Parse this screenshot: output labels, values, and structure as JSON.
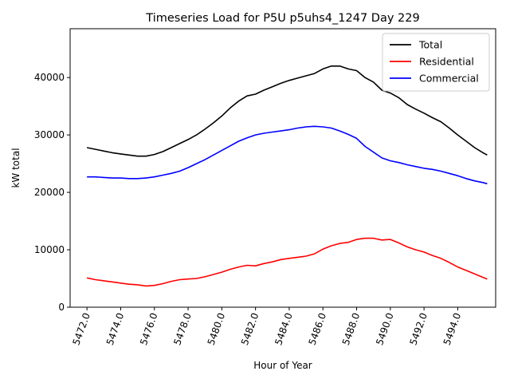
{
  "chart_data": {
    "type": "line",
    "title": "Timeseries Load for P5U p5uhs4_1247  Day 229",
    "xlabel": "Hour of Year",
    "ylabel": "kW total",
    "xlim": [
      5471.0,
      5496.25
    ],
    "ylim": [
      0,
      48500
    ],
    "x_ticks": [
      5472.0,
      5474.0,
      5476.0,
      5478.0,
      5480.0,
      5482.0,
      5484.0,
      5486.0,
      5488.0,
      5490.0,
      5492.0,
      5494.0
    ],
    "x_tick_labels": [
      "5472.0",
      "5474.0",
      "5476.0",
      "5478.0",
      "5480.0",
      "5482.0",
      "5484.0",
      "5486.0",
      "5488.0",
      "5490.0",
      "5492.0",
      "5494.0"
    ],
    "y_ticks": [
      0,
      10000,
      20000,
      30000,
      40000
    ],
    "y_tick_labels": [
      "0",
      "10000",
      "20000",
      "30000",
      "40000"
    ],
    "legend_position": "top-right",
    "grid": false,
    "x": [
      5472.0,
      5472.5,
      5473.0,
      5473.5,
      5474.0,
      5474.5,
      5475.0,
      5475.5,
      5476.0,
      5476.5,
      5477.0,
      5477.5,
      5478.0,
      5478.5,
      5479.0,
      5479.5,
      5480.0,
      5480.5,
      5481.0,
      5481.5,
      5482.0,
      5482.5,
      5483.0,
      5483.5,
      5484.0,
      5484.5,
      5485.0,
      5485.5,
      5486.0,
      5486.5,
      5487.0,
      5487.5,
      5488.0,
      5488.5,
      5489.0,
      5489.5,
      5490.0,
      5490.5,
      5491.0,
      5491.5,
      5492.0,
      5492.5,
      5493.0,
      5493.5,
      5494.0,
      5494.5,
      5495.0,
      5495.5,
      5495.75
    ],
    "series": [
      {
        "name": "Total",
        "color": "#000000",
        "values": [
          27800,
          27500,
          27200,
          26900,
          26700,
          26500,
          26300,
          26300,
          26600,
          27100,
          27800,
          28500,
          29200,
          30000,
          31000,
          32100,
          33300,
          34700,
          35900,
          36800,
          37100,
          37800,
          38400,
          39000,
          39500,
          39900,
          40300,
          40700,
          41500,
          42000,
          42000,
          41500,
          41200,
          40000,
          39200,
          37800,
          37300,
          36500,
          35300,
          34500,
          33800,
          33000,
          32300,
          31200,
          30000,
          28900,
          27800,
          26900,
          26500
        ]
      },
      {
        "name": "Residential",
        "color": "#ff0000",
        "values": [
          5100,
          4800,
          4600,
          4400,
          4200,
          4000,
          3900,
          3700,
          3800,
          4100,
          4500,
          4800,
          4900,
          5000,
          5300,
          5700,
          6100,
          6600,
          7000,
          7300,
          7200,
          7600,
          7900,
          8300,
          8500,
          8700,
          8900,
          9300,
          10100,
          10700,
          11100,
          11300,
          11800,
          12000,
          12000,
          11700,
          11800,
          11200,
          10500,
          10000,
          9600,
          9000,
          8500,
          7800,
          7000,
          6400,
          5800,
          5200,
          4900
        ]
      },
      {
        "name": "Commercial",
        "color": "#0000ff",
        "values": [
          22700,
          22700,
          22600,
          22500,
          22500,
          22400,
          22400,
          22500,
          22700,
          23000,
          23300,
          23700,
          24300,
          25000,
          25700,
          26500,
          27300,
          28100,
          28900,
          29500,
          30000,
          30300,
          30500,
          30700,
          30900,
          31200,
          31400,
          31500,
          31400,
          31200,
          30700,
          30100,
          29400,
          28000,
          27000,
          26000,
          25500,
          25200,
          24800,
          24500,
          24200,
          24000,
          23700,
          23300,
          22900,
          22400,
          22000,
          21700,
          21500
        ]
      }
    ]
  }
}
